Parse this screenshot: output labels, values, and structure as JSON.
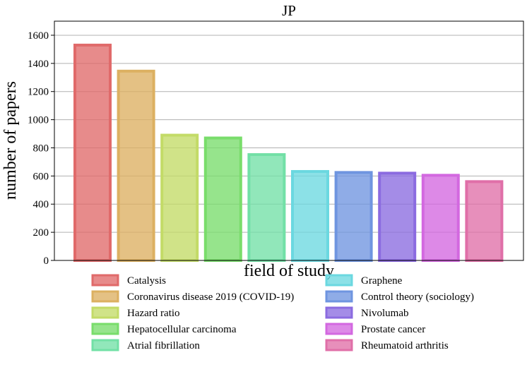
{
  "chart_data": {
    "type": "bar",
    "title": "JP",
    "xlabel": "field of study",
    "ylabel": "number of papers",
    "ylim": [
      0,
      1700
    ],
    "yticks": [
      0,
      200,
      400,
      600,
      800,
      1000,
      1200,
      1400,
      1600
    ],
    "grid": "horizontal",
    "legend_position": "bottom",
    "categories": [
      "Catalysis",
      "Coronavirus disease 2019 (COVID-19)",
      "Hazard ratio",
      "Hepatocellular carcinoma",
      "Atrial fibrillation",
      "Graphene",
      "Control theory (sociology)",
      "Nivolumab",
      "Prostate cancer",
      "Rheumatoid arthritis"
    ],
    "values": [
      1530,
      1345,
      890,
      870,
      752,
      632,
      625,
      620,
      605,
      560
    ],
    "colors": [
      "#e06a6a",
      "#dcb061",
      "#c3db67",
      "#79dd6b",
      "#72e0a6",
      "#6bd8e0",
      "#6f95e0",
      "#8b6be0",
      "#d368e0",
      "#e06fa8"
    ]
  }
}
